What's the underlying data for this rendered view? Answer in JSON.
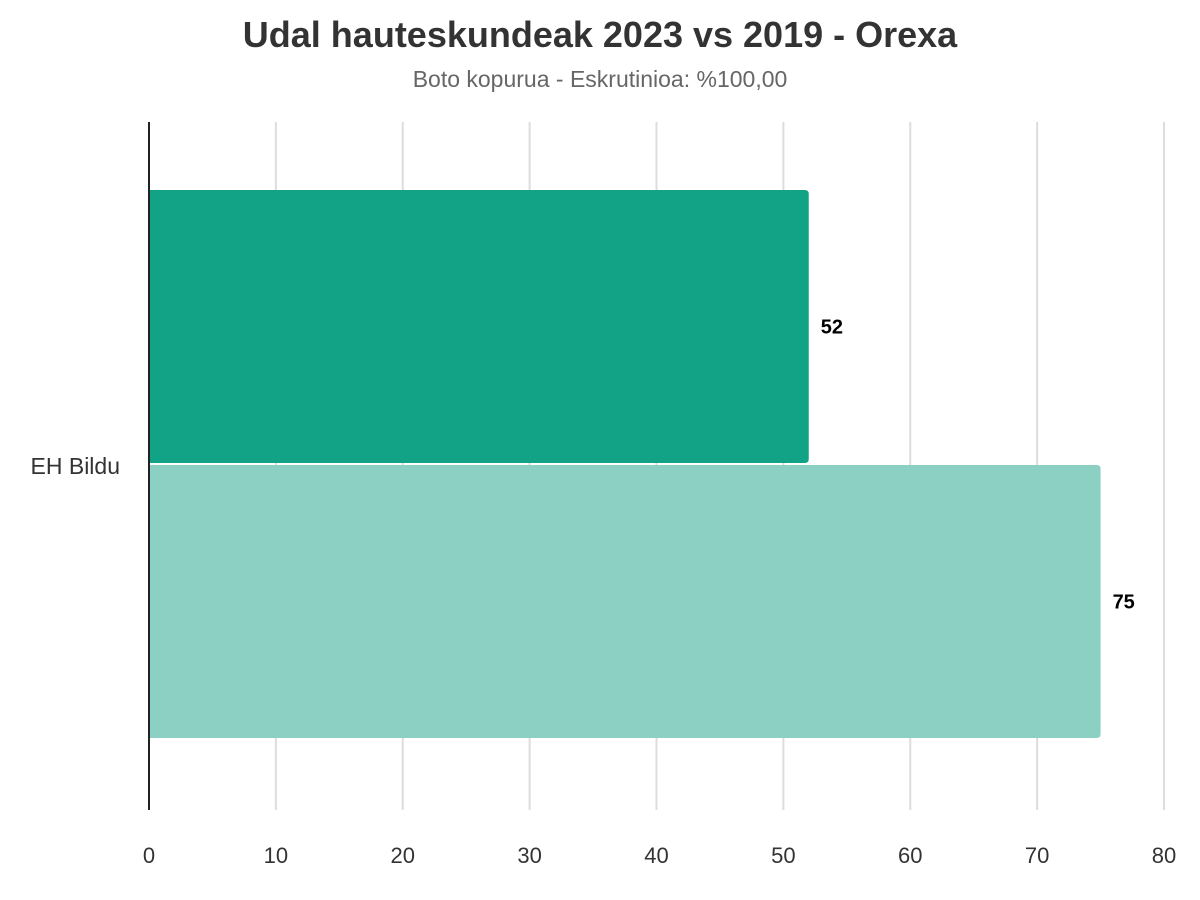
{
  "chart_data": {
    "type": "bar",
    "orientation": "horizontal",
    "title": "Udal hauteskundeak 2023 vs 2019 - Orexa",
    "subtitle": "Boto kopurua - Eskrutinioa: %100,00",
    "categories": [
      "EH Bildu"
    ],
    "series": [
      {
        "values": [
          52
        ],
        "color": "#12a386"
      },
      {
        "values": [
          75
        ],
        "color": "#8bd0c3"
      }
    ],
    "xlim": [
      0,
      80
    ],
    "xticks": [
      0,
      10,
      20,
      30,
      40,
      50,
      60,
      70,
      80
    ],
    "grid": true,
    "legend": false,
    "xlabel": "",
    "ylabel": ""
  }
}
